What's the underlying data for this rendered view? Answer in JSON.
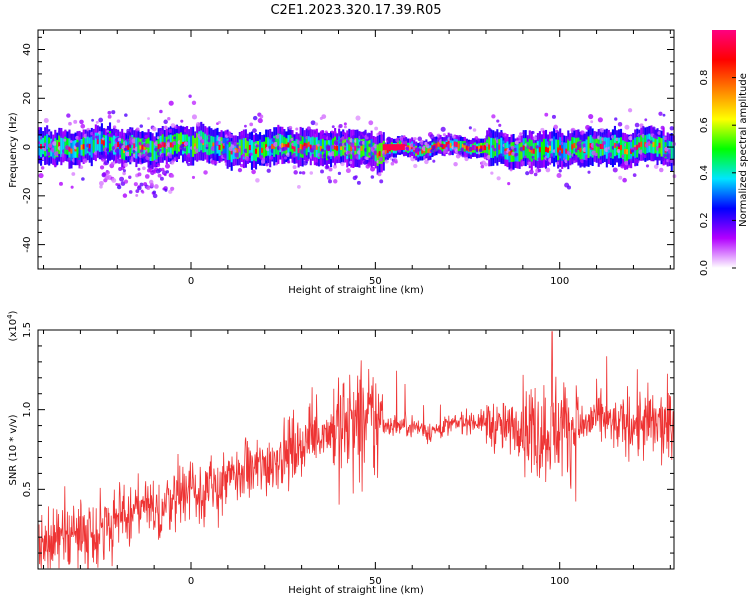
{
  "title": "C2E1.2023.320.17.39.R05",
  "chart_data": [
    {
      "type": "heatmap",
      "xlabel": "Height of straight line (km)",
      "ylabel": "Frequency (Hz)",
      "xlim": [
        -41.5,
        131
      ],
      "ylim": [
        -50,
        48
      ],
      "xticks": [
        0,
        50,
        100
      ],
      "yticks": [
        -40,
        -20,
        0,
        20,
        40
      ],
      "colorbar": {
        "label": "Normalized spectral amplitude",
        "range": [
          0,
          1
        ],
        "ticks": [
          "0.0",
          "0.2",
          "0.4",
          "0.6",
          "0.8"
        ],
        "colors": [
          "#ffffff",
          "#b200ff",
          "#0000ff",
          "#00e5ff",
          "#00ff00",
          "#ffff00",
          "#ff8000",
          "#ff0000",
          "#ff0080"
        ]
      },
      "band": {
        "center_hz": 0,
        "core_halfwidth_hz": 3,
        "outer_halfwidth_hz": 7,
        "scatter_notes": "extra scatter down to about -20 Hz near x = -20 to -5 km"
      }
    },
    {
      "type": "line",
      "xlabel": "Height of straight line (km)",
      "ylabel": "SNR (10 * v/v)",
      "y_multiplier": "(x10^4)",
      "xlim": [
        -41.5,
        131
      ],
      "ylim": [
        0,
        1.5
      ],
      "xticks": [
        0,
        50,
        100
      ],
      "yticks": [
        "0.5",
        "1.0",
        "1.5"
      ],
      "color": "#ee3333",
      "series": [
        {
          "x": [
            -41,
            -35,
            -30,
            -25,
            -20,
            -15,
            -12,
            -10,
            -5,
            0,
            5,
            10,
            15,
            20,
            25,
            30,
            35,
            40,
            45,
            50,
            55,
            60,
            65,
            70,
            75,
            80,
            85,
            90,
            95,
            100,
            105,
            110,
            115,
            120,
            125,
            131
          ],
          "y": [
            0.15,
            0.18,
            0.22,
            0.25,
            0.3,
            0.36,
            0.4,
            0.33,
            0.45,
            0.52,
            0.48,
            0.55,
            0.6,
            0.65,
            0.72,
            0.78,
            0.85,
            0.9,
            0.88,
            0.92,
            0.9,
            0.9,
            0.86,
            0.9,
            0.93,
            0.92,
            0.88,
            0.9,
            0.85,
            0.9,
            0.88,
            0.95,
            0.9,
            0.92,
            0.9,
            0.88
          ],
          "peak": {
            "x": 98,
            "y": 1.5
          }
        }
      ]
    }
  ]
}
